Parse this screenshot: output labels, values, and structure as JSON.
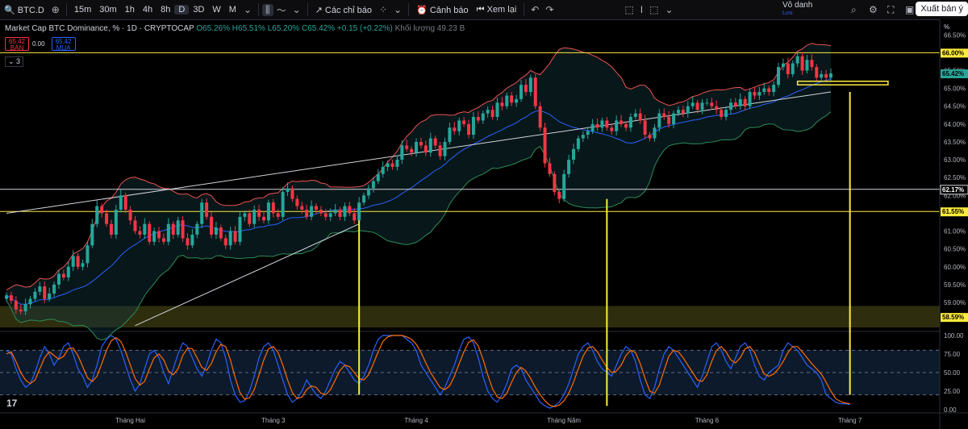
{
  "toolbar": {
    "symbol": "BTC.D",
    "intervals": [
      "15m",
      "30m",
      "1h",
      "4h",
      "8h",
      "D",
      "3D",
      "W",
      "M"
    ],
    "active_interval": "D",
    "indicators_label": "Các chỉ báo",
    "alert_label": "Cảnh báo",
    "replay_label": "Xem lại",
    "anonymous_label": "Vô danh",
    "anonymous_sub": "Lưu",
    "export_label": "Xuất bản ý"
  },
  "legend": {
    "title": "Market Cap BTC Dominance, %  · 1D · CRYPTOCAP",
    "open": "O65.26%",
    "high": "H65.51%",
    "low": "L65.20%",
    "close": "C65.42%",
    "change": "+0.15 (+0.22%)",
    "volume_label": "Khối lượng",
    "volume": "49.23 B",
    "sell_price": "65.42",
    "sell_label": "BÁN",
    "spread": "0.00",
    "buy_price": "65.42",
    "buy_label": "MUA",
    "collapse": "3"
  },
  "colors": {
    "up": "#26a69a",
    "down": "#f23645",
    "yellow": "#ffeb3b",
    "bb_upper": "#ef5350",
    "bb_lower": "#2e8b57",
    "ma": "#2962ff",
    "stoch_k": "#2962ff",
    "stoch_d": "#ff6d00"
  },
  "chart_data": {
    "type": "line",
    "title": "Market Cap BTC Dominance, %",
    "unit": "%",
    "x_labels": [
      "Tháng Hai",
      "Tháng 3",
      "Tháng 4",
      "Tháng Năm",
      "Tháng 6",
      "Tháng 7"
    ],
    "price_axis": {
      "ylim": [
        58.3,
        66.8
      ],
      "ticks": [
        "66.50%",
        "66.00%",
        "65.50%",
        "65.00%",
        "64.50%",
        "64.00%",
        "63.50%",
        "63.00%",
        "62.50%",
        "62.00%",
        "61.50%",
        "61.00%",
        "60.50%",
        "60.00%",
        "59.50%",
        "59.00%"
      ],
      "header": "%"
    },
    "price_labels": [
      {
        "text": "66.00%",
        "value": 66.0,
        "style": "yellow"
      },
      {
        "text": "65.42%",
        "value": 65.42,
        "style": "green"
      },
      {
        "text": "62.17%",
        "value": 62.17,
        "style": "white"
      },
      {
        "text": "61.55%",
        "value": 61.55,
        "style": "yellow"
      },
      {
        "text": "58.59%",
        "value": 58.59,
        "style": "yellow"
      }
    ],
    "horizontal_lines": [
      {
        "value": 66.0,
        "color": "yellow"
      },
      {
        "value": 62.17,
        "color": "white"
      },
      {
        "value": 61.55,
        "color": "yellow"
      }
    ],
    "zones": [
      {
        "from": 58.3,
        "to": 58.9,
        "color": "olive"
      }
    ],
    "trendlines": [
      {
        "from": [
          0,
          61.5
        ],
        "to": [
          173,
          64.9
        ],
        "color": "white"
      },
      {
        "from": [
          27,
          58.35
        ],
        "to": [
          74,
          61.2
        ],
        "color": "white"
      }
    ],
    "series": [
      {
        "name": "Price",
        "values": [
          59.2,
          59.05,
          58.8,
          58.75,
          58.95,
          59.1,
          59.3,
          59.45,
          59.1,
          59.25,
          59.5,
          59.8,
          59.7,
          60.0,
          60.3,
          60.0,
          60.1,
          60.6,
          61.2,
          61.7,
          61.5,
          61.2,
          60.9,
          61.6,
          62.0,
          61.6,
          61.3,
          61.0,
          60.9,
          61.2,
          60.7,
          61.0,
          60.8,
          60.7,
          61.2,
          60.9,
          61.3,
          60.8,
          60.6,
          60.9,
          61.2,
          61.8,
          61.4,
          60.9,
          61.1,
          60.8,
          60.6,
          61.0,
          60.7,
          61.4,
          61.5,
          61.2,
          61.6,
          61.4,
          61.3,
          61.8,
          61.5,
          61.4,
          62.1,
          62.2,
          61.9,
          61.7,
          61.6,
          61.4,
          61.7,
          61.6,
          61.5,
          61.4,
          61.5,
          61.6,
          61.4,
          61.7,
          61.5,
          61.3,
          61.8,
          62.0,
          62.2,
          62.4,
          62.6,
          62.8,
          62.9,
          62.8,
          63.0,
          63.4,
          63.3,
          63.2,
          63.5,
          63.4,
          63.2,
          63.6,
          63.4,
          63.1,
          63.5,
          63.9,
          63.8,
          64.1,
          64.0,
          63.7,
          64.2,
          64.1,
          64.3,
          64.4,
          64.2,
          64.6,
          64.5,
          64.8,
          64.6,
          64.7,
          65.1,
          64.9,
          65.3,
          64.5,
          63.9,
          62.9,
          62.6,
          62.1,
          61.9,
          62.6,
          63.0,
          63.3,
          63.6,
          63.7,
          63.8,
          64.0,
          63.9,
          64.1,
          63.9,
          63.8,
          64.1,
          64.0,
          63.9,
          64.2,
          64.3,
          64.1,
          63.7,
          63.6,
          63.9,
          64.3,
          64.2,
          64.0,
          64.3,
          64.4,
          64.3,
          64.5,
          64.6,
          64.4,
          64.6,
          64.6,
          64.5,
          64.4,
          64.2,
          64.4,
          64.6,
          64.5,
          64.7,
          64.5,
          64.9,
          64.8,
          64.9,
          65.0,
          64.9,
          65.1,
          65.6,
          65.7,
          65.4,
          65.7,
          65.9,
          65.5,
          65.8,
          65.6,
          65.3,
          65.4,
          65.3,
          65.42
        ]
      },
      {
        "name": "Stoch K",
        "values": [
          80,
          75,
          55,
          40,
          30,
          35,
          50,
          70,
          85,
          75,
          60,
          70,
          85,
          90,
          75,
          55,
          45,
          30,
          40,
          60,
          85,
          95,
          100,
          95,
          80,
          60,
          40,
          25,
          35,
          55,
          75,
          80,
          70,
          50,
          35,
          55,
          75,
          90,
          85,
          70,
          55,
          45,
          60,
          80,
          95,
          90,
          70,
          40,
          20,
          10,
          12,
          25,
          45,
          70,
          85,
          90,
          80,
          60,
          40,
          20,
          10,
          15,
          25,
          40,
          30,
          20,
          15,
          25,
          40,
          55,
          65,
          60,
          50,
          40,
          35,
          45,
          60,
          80,
          95,
          100,
          100,
          100,
          100,
          100,
          95,
          90,
          80,
          60,
          50,
          40,
          30,
          20,
          30,
          45,
          60,
          80,
          95,
          98,
          90,
          70,
          45,
          25,
          15,
          10,
          20,
          35,
          55,
          60,
          55,
          40,
          30,
          20,
          10,
          5,
          2,
          5,
          10,
          20,
          35,
          55,
          75,
          85,
          90,
          80,
          65,
          55,
          50,
          45,
          60,
          75,
          85,
          80,
          65,
          40,
          20,
          15,
          30,
          55,
          75,
          85,
          80,
          70,
          60,
          50,
          40,
          30,
          45,
          65,
          85,
          90,
          80,
          65,
          55,
          70,
          85,
          90,
          80,
          60,
          45,
          40,
          50,
          55,
          60,
          80,
          90,
          85,
          80,
          70,
          60,
          55,
          50,
          40,
          20,
          15,
          10,
          8,
          8,
          7
        ]
      },
      {
        "name": "Stoch D",
        "values": [
          75,
          78,
          65,
          50,
          40,
          35,
          40,
          55,
          70,
          78,
          73,
          68,
          72,
          82,
          83,
          73,
          58,
          43,
          38,
          45,
          62,
          80,
          93,
          97,
          92,
          78,
          60,
          42,
          33,
          38,
          55,
          70,
          75,
          67,
          52,
          47,
          55,
          73,
          83,
          82,
          70,
          57,
          53,
          62,
          78,
          88,
          85,
          67,
          43,
          23,
          14,
          16,
          27,
          47,
          67,
          82,
          85,
          77,
          60,
          40,
          23,
          15,
          17,
          27,
          32,
          30,
          22,
          20,
          27,
          40,
          53,
          60,
          58,
          50,
          42,
          40,
          47,
          62,
          78,
          92,
          98,
          100,
          100,
          100,
          98,
          95,
          88,
          77,
          63,
          50,
          40,
          30,
          27,
          32,
          45,
          62,
          78,
          91,
          94,
          86,
          68,
          47,
          28,
          17,
          15,
          22,
          37,
          50,
          57,
          52,
          42,
          30,
          20,
          12,
          6,
          4,
          6,
          12,
          22,
          37,
          55,
          72,
          83,
          85,
          78,
          67,
          57,
          50,
          52,
          60,
          73,
          80,
          77,
          62,
          42,
          25,
          22,
          33,
          53,
          72,
          80,
          78,
          70,
          60,
          50,
          40,
          38,
          47,
          65,
          80,
          85,
          78,
          67,
          63,
          70,
          82,
          85,
          77,
          62,
          48,
          45,
          48,
          55,
          65,
          77,
          85,
          85,
          78,
          70,
          62,
          55,
          48,
          37,
          25,
          15,
          11,
          9,
          8
        ]
      }
    ],
    "stoch_axis": {
      "ylim": [
        0,
        100
      ],
      "ticks": [
        "100.00",
        "75.00",
        "50.00",
        "25.00",
        "0.00"
      ],
      "bands": [
        80,
        20
      ]
    },
    "markers": [
      {
        "x": 74,
        "from": 61.3,
        "to_stoch": 20,
        "color": "yellow"
      },
      {
        "x": 126,
        "from": 61.9,
        "to_stoch": 5,
        "color": "yellow"
      },
      {
        "x": 177,
        "from": 64.9,
        "to_stoch": 20,
        "color": "yellow"
      }
    ],
    "highlight_box": {
      "x_from": 166,
      "x_to": 185,
      "from": 65.1,
      "to": 65.2,
      "color": "yellow"
    },
    "grid": false,
    "legend": "top-left"
  }
}
